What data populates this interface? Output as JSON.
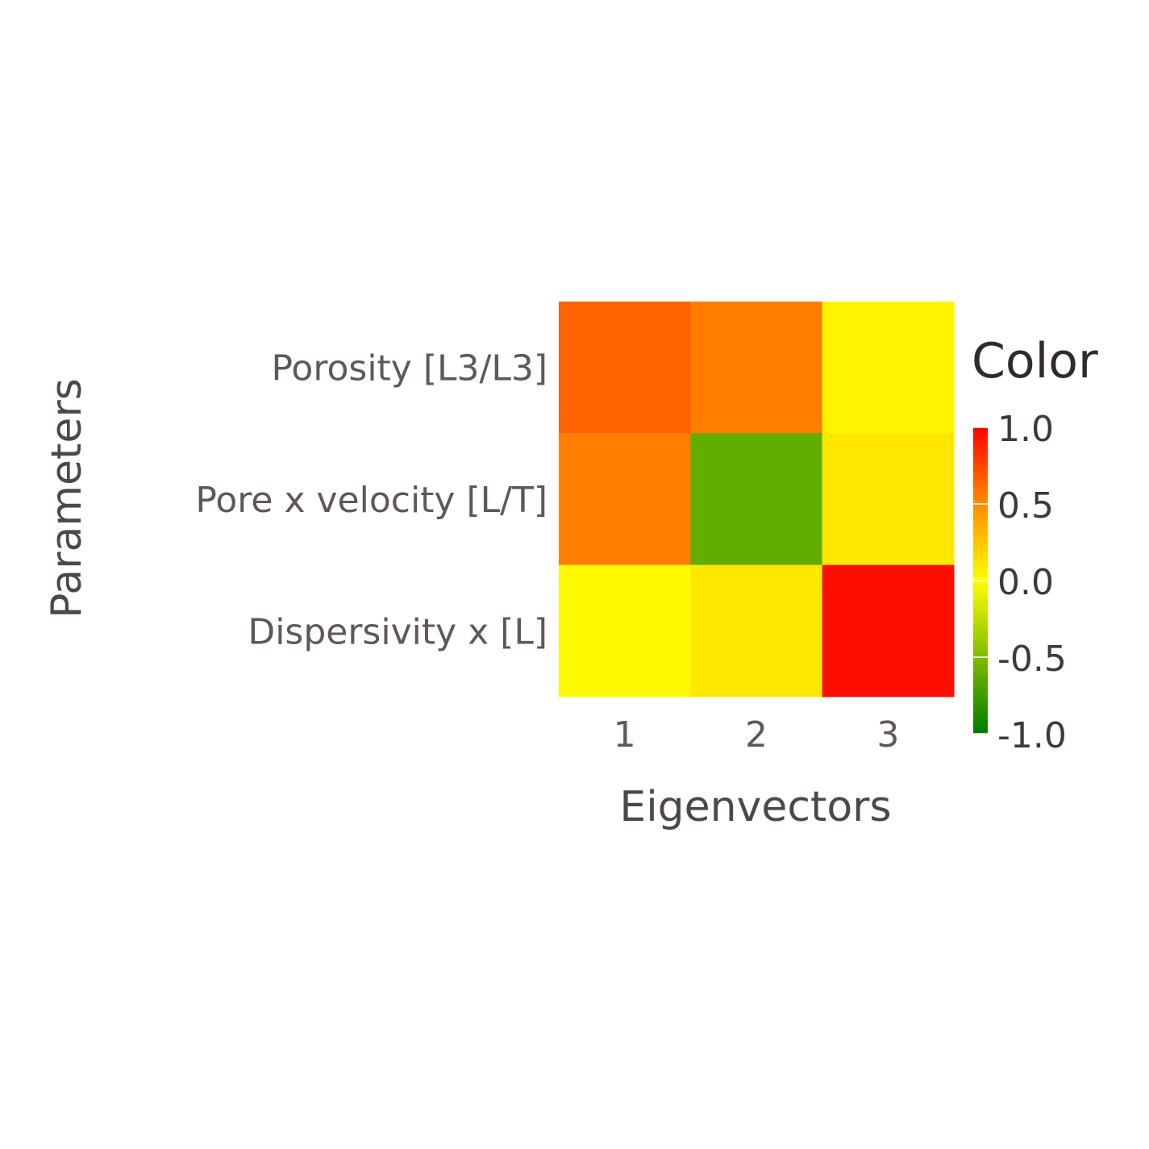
{
  "chart_data": {
    "type": "heatmap",
    "x_categories": [
      "1",
      "2",
      "3"
    ],
    "y_categories": [
      "Porosity [L3/L3]",
      "Pore x velocity [L/T]",
      "Dispersivity x [L]"
    ],
    "values": [
      [
        0.65,
        0.55,
        0.05
      ],
      [
        0.55,
        -0.62,
        0.1
      ],
      [
        0.02,
        0.1,
        0.95
      ]
    ],
    "xlabel": "Eigenvectors",
    "ylabel": "Parameters",
    "colorbar": {
      "title": "Color",
      "range": [
        -1.0,
        1.0
      ],
      "ticks": [
        "1.0",
        "0.5",
        "0.0",
        "-0.5",
        "-1.0"
      ],
      "tick_values": [
        1.0,
        0.5,
        0.0,
        -0.5,
        -1.0
      ],
      "colorscale": [
        [
          -1.0,
          "#007a00"
        ],
        [
          0.0,
          "#ffff00"
        ],
        [
          0.5,
          "#ff8c00"
        ],
        [
          1.0,
          "#ff0000"
        ]
      ]
    },
    "grid": false
  }
}
